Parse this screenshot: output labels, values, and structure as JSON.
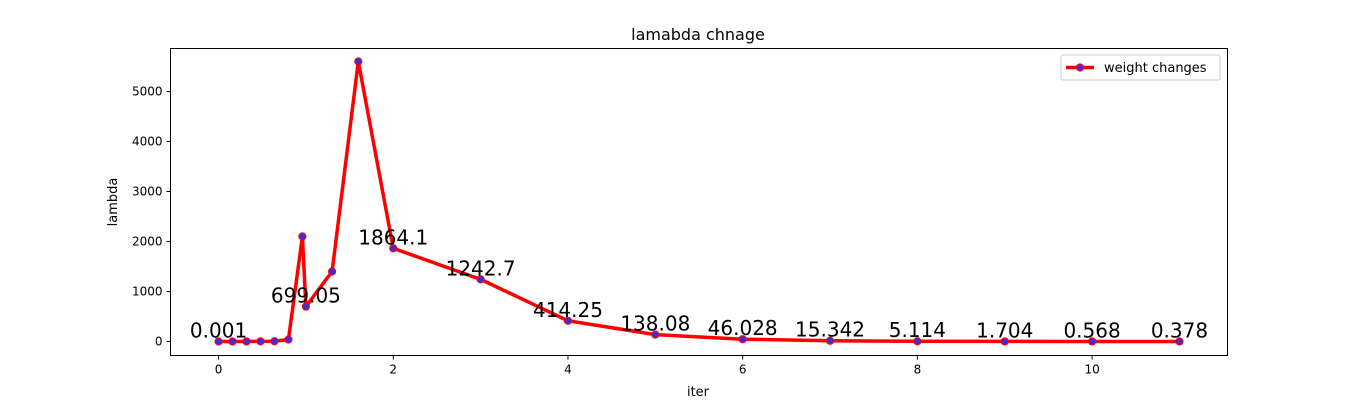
{
  "chart_data": {
    "type": "line",
    "title": "lamabda chnage",
    "xlabel": "iter",
    "ylabel": "lambda",
    "xlim": [
      -0.55,
      11.55
    ],
    "ylim": [
      -280,
      5860
    ],
    "xticks": [
      0,
      2,
      4,
      6,
      8,
      10
    ],
    "yticks": [
      0,
      1000,
      2000,
      3000,
      4000,
      5000
    ],
    "grid": false,
    "legend_position": "top-right",
    "series": [
      {
        "name": "weight changes",
        "line_color": "#ff0000",
        "marker_color": "#3a2fd9",
        "x": [
          0,
          0.16,
          0.32,
          0.48,
          0.64,
          0.8,
          0.96,
          1.0,
          1.3,
          1.6,
          2,
          3,
          4,
          5,
          6,
          7,
          8,
          9,
          10,
          11
        ],
        "y": [
          0.001,
          0.5,
          1,
          2,
          5,
          40,
          2100,
          699.05,
          1400,
          5600,
          1864.1,
          1242.7,
          414.25,
          138.08,
          46.028,
          15.342,
          5.114,
          1.704,
          0.568,
          0.378
        ]
      }
    ],
    "annotations": [
      {
        "text": "0.001",
        "x": 0,
        "y": 0.001
      },
      {
        "text": "699.05",
        "x": 1.0,
        "y": 699.05
      },
      {
        "text": "1864.1",
        "x": 2,
        "y": 1864.1
      },
      {
        "text": "1242.7",
        "x": 3,
        "y": 1242.7
      },
      {
        "text": "414.25",
        "x": 4,
        "y": 414.25
      },
      {
        "text": "138.08",
        "x": 5,
        "y": 138.08
      },
      {
        "text": "46.028",
        "x": 6,
        "y": 46.028
      },
      {
        "text": "15.342",
        "x": 7,
        "y": 15.342
      },
      {
        "text": "5.114",
        "x": 8,
        "y": 5.114
      },
      {
        "text": "1.704",
        "x": 9,
        "y": 1.704
      },
      {
        "text": "0.568",
        "x": 10,
        "y": 0.568
      },
      {
        "text": "0.378",
        "x": 11,
        "y": 0.378
      }
    ]
  }
}
